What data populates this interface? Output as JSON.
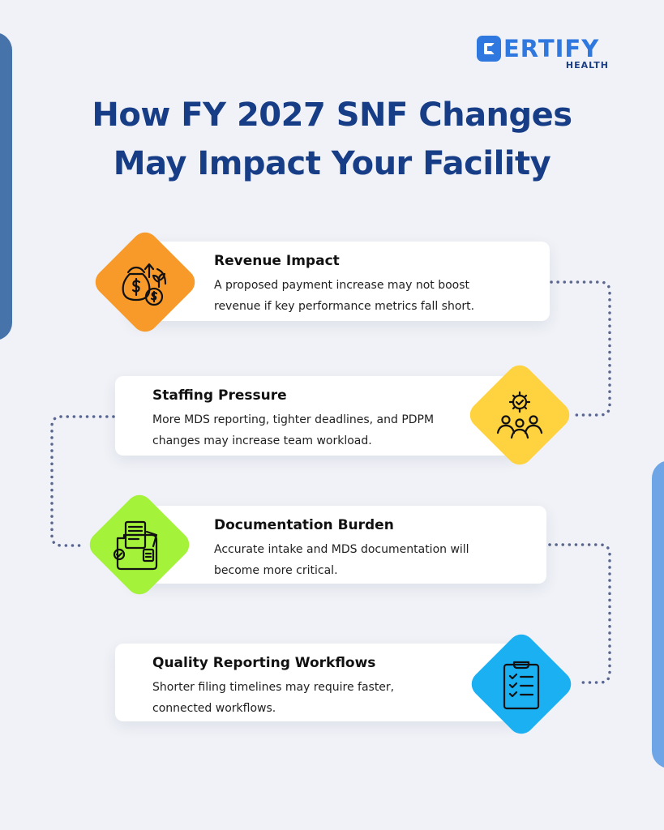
{
  "brand": {
    "name": "ERTIFY",
    "sub": "HEALTH",
    "color": "#2f78e0"
  },
  "title": {
    "line1": "How FY 2027 SNF Changes",
    "line2": "May Impact Your Facility",
    "color": "#163d86"
  },
  "items": [
    {
      "heading": "Revenue Impact",
      "line1": "A proposed payment increase may not boost",
      "line2": "revenue if key performance metrics fall short.",
      "icon": "money-bag-growth-icon",
      "color": "#f79a2a"
    },
    {
      "heading": "Staffing Pressure",
      "line1": "More MDS reporting, tighter deadlines, and PDPM",
      "line2": "changes may increase team workload.",
      "icon": "team-gear-icon",
      "color": "#ffd23f"
    },
    {
      "heading": "Documentation Burden",
      "line1": "Accurate intake and MDS documentation will",
      "line2": "become more critical.",
      "icon": "document-folder-icon",
      "color": "#a4f23a"
    },
    {
      "heading": "Quality Reporting Workflows",
      "line1": "Shorter filing timelines may require faster,",
      "line2": "connected workflows.",
      "icon": "clipboard-checklist-icon",
      "color": "#1ab0f2"
    }
  ]
}
